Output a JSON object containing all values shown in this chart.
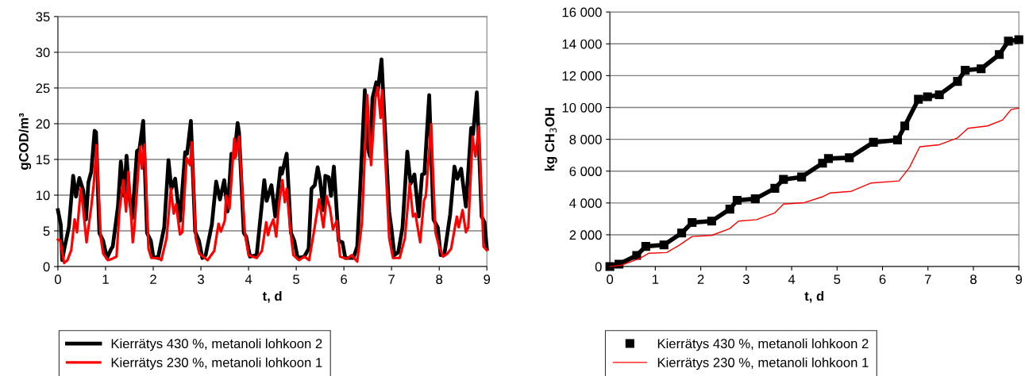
{
  "chart_data": [
    {
      "type": "line",
      "xlabel": "t, d",
      "ylabel": "gCOD/m³",
      "xlim": [
        0,
        9
      ],
      "xticks": [
        0,
        1,
        2,
        3,
        4,
        5,
        6,
        7,
        8,
        9
      ],
      "ylim": [
        0,
        35
      ],
      "yticks": [
        0,
        5,
        10,
        15,
        20,
        25,
        30,
        35
      ],
      "grid": "y",
      "legend": "bottom",
      "line_style": "solid",
      "series": [
        {
          "name": "Kierrätys 430 %, metanoli lohkoon 2",
          "color": "#000000",
          "x": [
            0,
            0.06,
            0.09,
            0.14,
            0.23,
            0.32,
            0.38,
            0.45,
            0.53,
            0.59,
            0.64,
            0.7,
            0.77,
            0.8,
            0.87,
            0.95,
            1.03,
            1.12,
            1.15,
            1.26,
            1.32,
            1.39,
            1.44,
            1.5,
            1.56,
            1.66,
            1.71,
            1.79,
            1.87,
            1.95,
            2.0,
            2.1,
            2.23,
            2.32,
            2.38,
            2.46,
            2.56,
            2.67,
            2.71,
            2.79,
            2.88,
            2.96,
            3.03,
            3.1,
            3.23,
            3.32,
            3.4,
            3.49,
            3.56,
            3.64,
            3.7,
            3.77,
            3.8,
            3.9,
            3.95,
            4.03,
            4.17,
            4.33,
            4.38,
            4.48,
            4.56,
            4.67,
            4.7,
            4.8,
            4.89,
            4.96,
            5.03,
            5.17,
            5.26,
            5.32,
            5.39,
            5.45,
            5.5,
            5.57,
            5.61,
            5.68,
            5.73,
            5.79,
            5.89,
            5.97,
            6.03,
            6.2,
            6.28,
            6.35,
            6.44,
            6.5,
            6.55,
            6.6,
            6.68,
            6.71,
            6.79,
            6.83,
            6.95,
            7.0,
            7.06,
            7.14,
            7.23,
            7.33,
            7.4,
            7.48,
            7.57,
            7.64,
            7.69,
            7.79,
            7.88,
            7.97,
            8.03,
            8.11,
            8.23,
            8.32,
            8.38,
            8.46,
            8.56,
            8.67,
            8.71,
            8.79,
            8.89,
            8.95,
            9.0
          ],
          "values": [
            7.9,
            5.9,
            0.9,
            2.7,
            5.5,
            12.7,
            9.8,
            12.4,
            10.7,
            6.6,
            11.8,
            13.3,
            19.0,
            18.8,
            4.7,
            3.6,
            1.2,
            2.5,
            2.8,
            8.4,
            14.7,
            9.9,
            15.5,
            9.9,
            6.8,
            16.2,
            16.4,
            20.4,
            4.7,
            3.6,
            1.4,
            1.2,
            5.5,
            14.9,
            10.9,
            12.3,
            6.4,
            16.0,
            15.8,
            20.4,
            4.9,
            3.6,
            1.2,
            1.6,
            5.9,
            11.9,
            9.4,
            12.1,
            7.7,
            15.8,
            15.3,
            20.1,
            18.8,
            4.7,
            4.2,
            1.4,
            1.6,
            12.1,
            9.2,
            11.4,
            7.0,
            13.8,
            13.0,
            15.8,
            4.7,
            3.6,
            1.2,
            1.4,
            2.5,
            10.9,
            11.4,
            13.9,
            12.1,
            7.9,
            12.7,
            12.5,
            9.9,
            14.0,
            3.6,
            3.4,
            1.2,
            1.2,
            2.8,
            12.1,
            24.7,
            16.6,
            15.4,
            23.6,
            25.8,
            24.5,
            29.0,
            23.6,
            7.7,
            5.2,
            1.6,
            2.0,
            5.5,
            16.1,
            11.6,
            12.9,
            7.0,
            12.9,
            13.0,
            24.0,
            6.6,
            5.5,
            1.6,
            1.8,
            7.3,
            14.0,
            12.3,
            13.7,
            8.4,
            19.4,
            18.5,
            24.4,
            7.0,
            6.2,
            2.5
          ]
        },
        {
          "name": "Kierrätys 230 %, metanoli lohkoon 1",
          "color": "#ff0000",
          "x": [
            0,
            0.05,
            0.13,
            0.2,
            0.28,
            0.35,
            0.4,
            0.48,
            0.53,
            0.6,
            0.7,
            0.75,
            0.81,
            0.9,
            0.95,
            1.05,
            1.14,
            1.23,
            1.29,
            1.37,
            1.43,
            1.48,
            1.57,
            1.6,
            1.7,
            1.73,
            1.76,
            1.82,
            1.9,
            1.96,
            2.1,
            2.17,
            2.28,
            2.37,
            2.43,
            2.48,
            2.56,
            2.61,
            2.7,
            2.77,
            2.81,
            2.89,
            2.97,
            3.14,
            3.28,
            3.37,
            3.42,
            3.5,
            3.53,
            3.6,
            3.7,
            3.73,
            3.8,
            3.92,
            4.0,
            4.17,
            4.28,
            4.37,
            4.41,
            4.45,
            4.52,
            4.58,
            4.64,
            4.71,
            4.76,
            4.8,
            4.87,
            4.94,
            5.06,
            5.17,
            5.27,
            5.37,
            5.48,
            5.57,
            5.64,
            5.71,
            5.77,
            5.85,
            5.92,
            6.06,
            6.16,
            6.28,
            6.38,
            6.49,
            6.57,
            6.66,
            6.71,
            6.77,
            6.8,
            6.95,
            7.03,
            7.17,
            7.28,
            7.38,
            7.45,
            7.5,
            7.6,
            7.68,
            7.72,
            7.83,
            7.92,
            7.99,
            8.08,
            8.17,
            8.25,
            8.37,
            8.41,
            8.49,
            8.56,
            8.61,
            8.7,
            8.76,
            8.83,
            8.93,
            9.0
          ],
          "values": [
            3.8,
            3.6,
            0.5,
            0.9,
            2.3,
            6.6,
            4.8,
            10.9,
            8.1,
            3.4,
            8.4,
            11.4,
            17.0,
            4.0,
            1.8,
            0.9,
            1.1,
            1.4,
            7.7,
            12.1,
            7.7,
            13.3,
            3.4,
            5.0,
            14.7,
            16.8,
            13.7,
            17.1,
            2.5,
            1.2,
            1.2,
            0.9,
            4.0,
            10.9,
            7.4,
            8.7,
            4.5,
            4.8,
            15.2,
            14.2,
            17.4,
            4.0,
            1.8,
            0.9,
            2.2,
            6.0,
            4.9,
            6.4,
            9.9,
            8.1,
            17.9,
            15.3,
            18.2,
            4.9,
            1.6,
            1.2,
            2.2,
            6.2,
            4.4,
            5.5,
            6.6,
            4.2,
            8.8,
            12.1,
            9.0,
            10.9,
            5.5,
            1.6,
            0.9,
            1.4,
            0.9,
            4.8,
            9.4,
            5.5,
            9.8,
            8.1,
            5.2,
            6.4,
            1.4,
            1.1,
            1.6,
            0.7,
            6.2,
            24.0,
            14.2,
            23.6,
            25.1,
            20.8,
            24.7,
            4.0,
            1.2,
            1.2,
            4.0,
            11.6,
            7.0,
            7.4,
            3.4,
            9.2,
            9.9,
            19.9,
            4.8,
            3.0,
            1.4,
            1.8,
            2.5,
            7.0,
            5.5,
            7.9,
            4.8,
            5.5,
            18.2,
            15.4,
            19.6,
            2.8,
            2.3
          ]
        }
      ]
    },
    {
      "type": "line",
      "xlabel": "t, d",
      "ylabel": "kg CH$_{3}$OH",
      "xlim": [
        0,
        9
      ],
      "xticks": [
        0,
        1,
        2,
        3,
        4,
        5,
        6,
        7,
        8,
        9
      ],
      "ylim": [
        0,
        16000
      ],
      "yticks": [
        0,
        {
          "value": 2000,
          "label": "2 000"
        },
        {
          "value": 4000,
          "label": "4 000"
        },
        {
          "value": 6000,
          "label": "6 000"
        },
        {
          "value": 8000,
          "label": "8 000"
        },
        {
          "value": 10000,
          "label": "10 000"
        },
        {
          "value": 12000,
          "label": "12 000"
        },
        {
          "value": 14000,
          "label": "14 000"
        },
        {
          "value": 16000,
          "label": "16 000"
        }
      ],
      "grid": "y",
      "legend": "bottom",
      "series": [
        {
          "name": "Kierrätys 430 %, metanoli lohkoon 2",
          "color": "#000000",
          "marker": "square",
          "x": [
            0,
            0.2,
            0.59,
            0.79,
            1.19,
            1.58,
            1.81,
            2.24,
            2.64,
            2.8,
            3.2,
            3.63,
            3.82,
            4.22,
            4.68,
            4.81,
            5.27,
            5.8,
            6.33,
            6.49,
            6.79,
            6.99,
            7.25,
            7.65,
            7.82,
            8.17,
            8.57,
            8.77,
            9
          ],
          "values": [
            0,
            150,
            700,
            1270,
            1360,
            2110,
            2770,
            2860,
            3610,
            4170,
            4260,
            4920,
            5480,
            5630,
            6500,
            6790,
            6840,
            7810,
            7960,
            8840,
            10520,
            10670,
            10800,
            11640,
            12340,
            12430,
            13330,
            14170,
            14260
          ]
        },
        {
          "name": "Kierrätys 230 %, metanoli lohkoon 1",
          "color": "#ff0000",
          "marker": "none",
          "x": [
            0,
            0.26,
            0.66,
            0.86,
            1.25,
            1.52,
            1.81,
            2.24,
            2.64,
            2.83,
            3.23,
            3.63,
            3.82,
            4.28,
            4.68,
            4.85,
            5.31,
            5.74,
            6.36,
            6.59,
            6.82,
            7.25,
            7.65,
            7.88,
            8.31,
            8.64,
            8.83,
            9
          ],
          "values": [
            0,
            90,
            520,
            840,
            880,
            1330,
            1890,
            1960,
            2390,
            2860,
            2950,
            3380,
            3930,
            4020,
            4390,
            4630,
            4730,
            5250,
            5380,
            6220,
            7530,
            7660,
            8090,
            8690,
            8840,
            9210,
            9870,
            9960
          ]
        }
      ]
    }
  ]
}
